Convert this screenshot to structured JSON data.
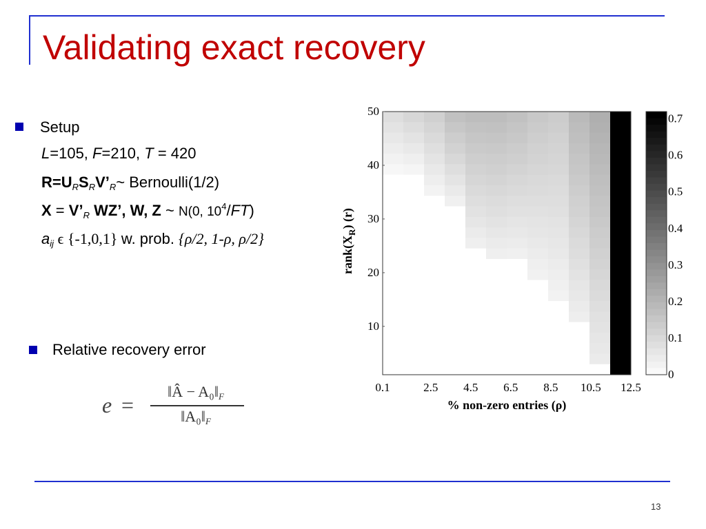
{
  "slide": {
    "title": "Validating exact recovery",
    "page_number": "13"
  },
  "colors": {
    "title": "#c00000",
    "frame": "#1f2fd0",
    "bullet": "#0000b0"
  },
  "setup": {
    "bullet_label": "Setup",
    "line1": {
      "L": "L",
      "L_val": "=105, ",
      "F": "F",
      "F_val": "=210, ",
      "T": "T",
      "T_val": " = 420"
    },
    "line2": {
      "R_eq_U": "R=U",
      "sub_R": "R",
      "S": "S",
      "V": "V",
      "prime": "’",
      "tail": "~ Bernoulli(1/2)"
    },
    "line3": {
      "X": "X",
      "eq": " = ",
      "V": "V",
      "prime": "’",
      "sub_R": "R",
      "WZ": "WZ",
      "comma_W": "’, W",
      "comma_Z": ", Z",
      "tilde": " ~ ",
      "dist_a": "N(0, 10",
      "sup_4": "4",
      "slash": "/",
      "FT": "FT",
      "close": ")"
    },
    "line4": {
      "a": "a",
      "sub_ij": "ij",
      "in_set": " ϵ {-1,0,1} ",
      "wprob": "w. prob. ",
      "probs": "{ρ/2, 1-ρ, ρ/2}"
    }
  },
  "error": {
    "bullet_label": "Relative recovery error",
    "lhs": "e",
    "eq": "=",
    "numerator": "‖Â − A₀‖",
    "denominator": "‖A₀‖",
    "norm_sub": "F"
  },
  "chart_data": {
    "type": "heatmap",
    "xlabel": "% non-zero entries (ρ)",
    "ylabel": "rank(X_R) (r)",
    "ylabel_parts": {
      "pre": "rank(X",
      "sub": "R",
      "post": ") (r)"
    },
    "x_ticks": [
      "0.1",
      "2.5",
      "4.5",
      "6.5",
      "8.5",
      "10.5",
      "12.5"
    ],
    "x_range": [
      0.1,
      12.5
    ],
    "y_ticks": [
      10,
      20,
      30,
      40,
      50
    ],
    "y_range": [
      1,
      50
    ],
    "x_columns": 12,
    "y_rows": 25,
    "colorbar": {
      "ticks": [
        "0.7",
        "0.6",
        "0.5",
        "0.4",
        "0.3",
        "0.2",
        "0.1",
        "0"
      ],
      "range": [
        0,
        0.7
      ],
      "colormap": "white-to-black"
    },
    "column_boundaries_rows": [
      {
        "col": 1,
        "value_top": 0.09,
        "nonzero_down_to_row": 20
      },
      {
        "col": 2,
        "value_top": 0.11,
        "nonzero_down_to_row": 20
      },
      {
        "col": 3,
        "value_top": 0.13,
        "nonzero_down_to_row": 18
      },
      {
        "col": 4,
        "value_top": 0.17,
        "nonzero_down_to_row": 17
      },
      {
        "col": 5,
        "value_top": 0.18,
        "nonzero_down_to_row": 13
      },
      {
        "col": 6,
        "value_top": 0.18,
        "nonzero_down_to_row": 12
      },
      {
        "col": 7,
        "value_top": 0.17,
        "nonzero_down_to_row": 12
      },
      {
        "col": 8,
        "value_top": 0.15,
        "nonzero_down_to_row": 10
      },
      {
        "col": 9,
        "value_top": 0.14,
        "nonzero_down_to_row": 8
      },
      {
        "col": 10,
        "value_top": 0.19,
        "nonzero_down_to_row": 6
      },
      {
        "col": 11,
        "value_top": 0.22,
        "nonzero_down_to_row": 2
      },
      {
        "col": 12,
        "value_top": 0.72,
        "nonzero_down_to_row": 1
      }
    ]
  }
}
